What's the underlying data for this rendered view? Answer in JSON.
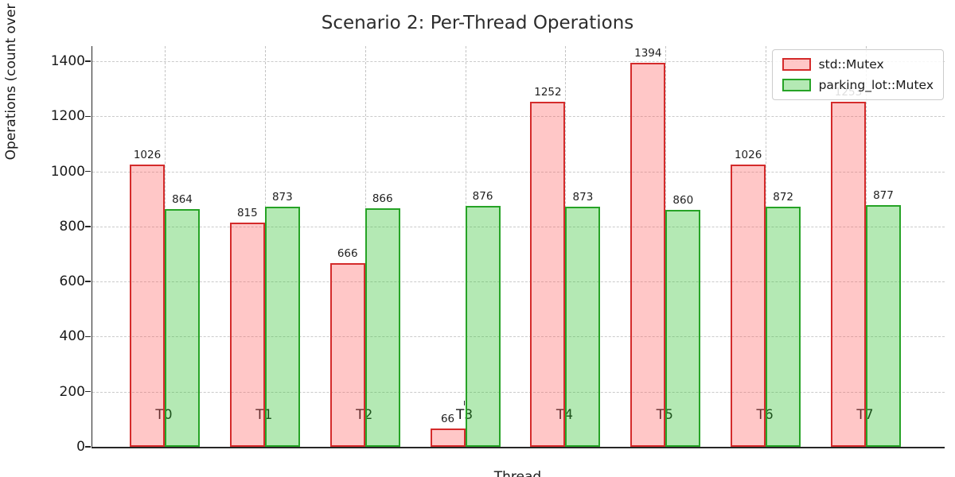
{
  "chart_data": {
    "type": "bar",
    "title": "Scenario 2: Per-Thread Operations",
    "xlabel": "Thread",
    "ylabel": "Operations (count over run)",
    "categories": [
      "T0",
      "T1",
      "T2",
      "T3",
      "T4",
      "T5",
      "T6",
      "T7"
    ],
    "series": [
      {
        "name": "std::Mutex",
        "values": [
          1026,
          815,
          666,
          66,
          1252,
          1394,
          1026,
          1253
        ],
        "edge_color": "#d42b2b",
        "fill_color": "rgba(255,80,80,0.32)"
      },
      {
        "name": "parking_lot::Mutex",
        "values": [
          864,
          873,
          866,
          876,
          873,
          860,
          872,
          877
        ],
        "edge_color": "#26a326",
        "fill_color": "rgba(36,190,36,0.34)"
      }
    ],
    "yticks": [
      0,
      200,
      400,
      600,
      800,
      1000,
      1200,
      1400
    ],
    "ylim": [
      0,
      1455
    ],
    "grid": "dashed",
    "legend_position": "upper right",
    "bar_value_labels_shown": true
  }
}
